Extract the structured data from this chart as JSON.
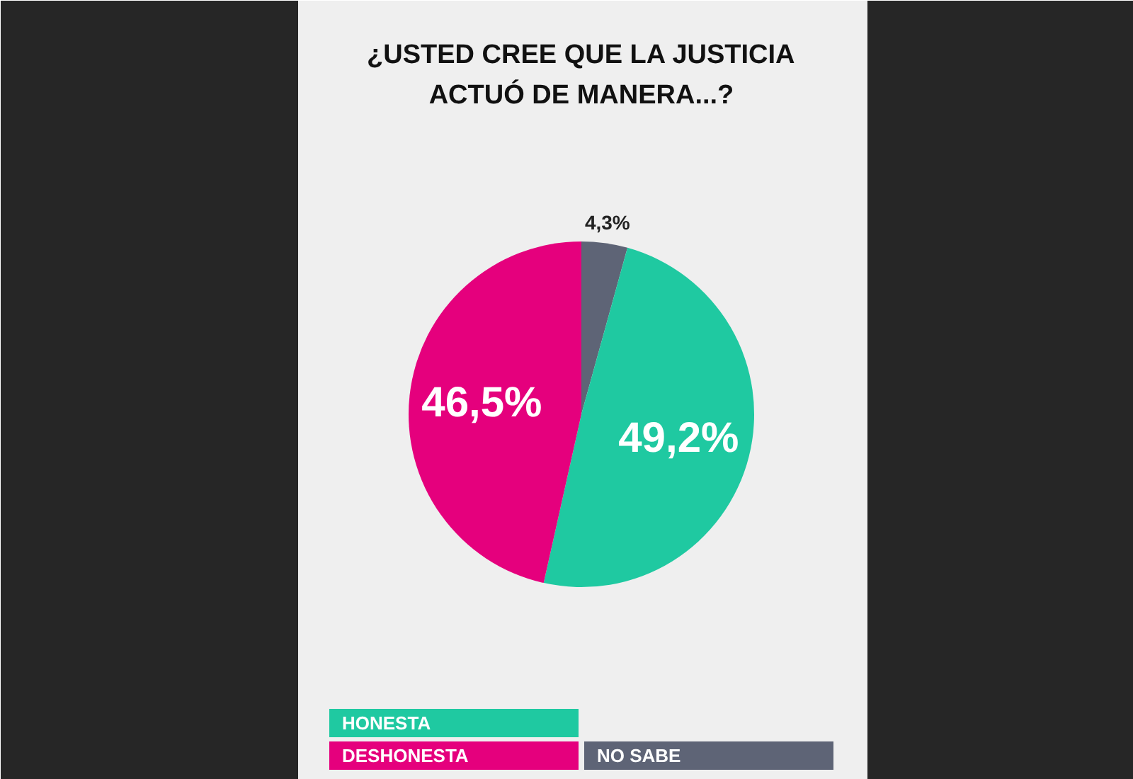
{
  "chart_data": {
    "type": "pie",
    "title": "¿USTED CREE QUE LA JUSTICIA\nACTUÓ DE MANERA...?",
    "categories": [
      "NO SABE",
      "HONESTA",
      "DESHONESTA"
    ],
    "values": [
      4.3,
      49.2,
      46.5
    ],
    "colors": [
      "#5e6476",
      "#1fc9a1",
      "#e5007d"
    ],
    "value_labels": [
      "4,3%",
      "49,2%",
      "46,5%"
    ],
    "legend": "bottom"
  }
}
